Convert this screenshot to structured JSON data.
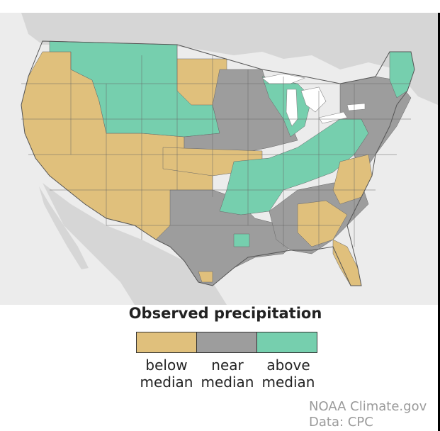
{
  "legend": {
    "title": "Observed precipitation",
    "items": [
      {
        "line1": "below",
        "line2": "median",
        "color": "#e0c07c"
      },
      {
        "line1": "near",
        "line2": "median",
        "color": "#9d9d9d"
      },
      {
        "line1": "above",
        "line2": "median",
        "color": "#76cfae"
      }
    ]
  },
  "credit": {
    "source": "NOAA Climate.gov",
    "data": "Data: CPC"
  },
  "colors": {
    "ocean": "#ececec",
    "land": "#d6d6d6",
    "lakes": "#ffffff",
    "borders": "#666666"
  }
}
